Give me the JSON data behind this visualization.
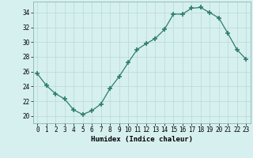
{
  "x": [
    0,
    1,
    2,
    3,
    4,
    5,
    6,
    7,
    8,
    9,
    10,
    11,
    12,
    13,
    14,
    15,
    16,
    17,
    18,
    19,
    20,
    21,
    22,
    23
  ],
  "y": [
    25.7,
    24.1,
    23.0,
    22.3,
    20.8,
    20.2,
    20.7,
    21.6,
    23.7,
    25.3,
    27.2,
    29.0,
    29.8,
    30.5,
    31.7,
    33.8,
    33.8,
    34.6,
    34.7,
    34.0,
    33.3,
    31.2,
    29.0,
    27.7
  ],
  "line_color": "#2e7d6e",
  "marker": "+",
  "marker_size": 4,
  "marker_lw": 1.2,
  "bg_color": "#d6f0ef",
  "grid_color": "#b8d8d5",
  "xlabel": "Humidex (Indice chaleur)",
  "ylim": [
    19.0,
    35.5
  ],
  "xlim": [
    -0.5,
    23.5
  ],
  "yticks": [
    20,
    22,
    24,
    26,
    28,
    30,
    32,
    34
  ],
  "xticks": [
    0,
    1,
    2,
    3,
    4,
    5,
    6,
    7,
    8,
    9,
    10,
    11,
    12,
    13,
    14,
    15,
    16,
    17,
    18,
    19,
    20,
    21,
    22,
    23
  ],
  "label_fontsize": 6.5,
  "tick_fontsize": 5.5
}
